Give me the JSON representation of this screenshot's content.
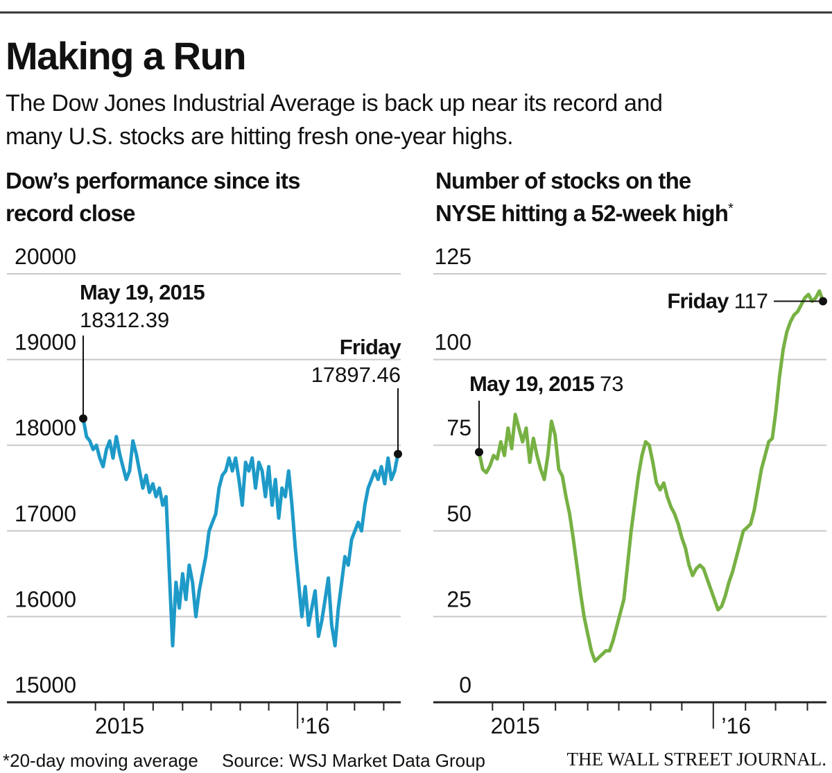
{
  "header": {
    "title": "Making a Run",
    "subtitle": [
      "The Dow Jones Industrial Average is back up near its record and",
      "many U.S. stocks are hitting fresh one-year highs."
    ]
  },
  "chart_data": [
    {
      "type": "line",
      "title": [
        "Dow’s performance since its",
        "record close"
      ],
      "color": "#1e9ac8",
      "ylim": [
        15000,
        20000
      ],
      "yticks": [
        15000,
        16000,
        17000,
        18000,
        19000,
        20000
      ],
      "grid": true,
      "xlim": [
        0,
        95
      ],
      "xticks": [
        3.7,
        12.3,
        21.1,
        30,
        38.6,
        47.4,
        56,
        64.7,
        73.6,
        81.9,
        90.7
      ],
      "xlabels": [
        {
          "value": 11,
          "label": "2015"
        },
        {
          "value": 70,
          "label": "’16"
        }
      ],
      "values": [
        18312.39,
        18100,
        18050,
        17950,
        18000,
        17850,
        17750,
        17950,
        18050,
        17850,
        18100,
        17900,
        17750,
        17600,
        17700,
        18050,
        17900,
        17700,
        17500,
        17650,
        17450,
        17550,
        17400,
        17500,
        17300,
        17400,
        16500,
        15660,
        16400,
        16100,
        16500,
        16200,
        16600,
        16400,
        16000,
        16300,
        16500,
        16700,
        17000,
        17100,
        17200,
        17500,
        17650,
        17700,
        17850,
        17700,
        17850,
        17600,
        17300,
        17800,
        17700,
        17850,
        17500,
        17800,
        17700,
        17400,
        17750,
        17300,
        17600,
        17150,
        17500,
        17400,
        17700,
        17300,
        16800,
        16400,
        16000,
        16350,
        15900,
        16100,
        16300,
        15770,
        15950,
        16200,
        16450,
        15900,
        15660,
        16100,
        16400,
        16700,
        16600,
        16900,
        17000,
        17100,
        17000,
        17300,
        17500,
        17600,
        17700,
        17600,
        17750,
        17550,
        17850,
        17600,
        17700,
        17897.46
      ],
      "annotations": [
        {
          "label": "May 19, 2015"
        },
        {
          "label": "Friday"
        }
      ]
    },
    {
      "type": "line",
      "title": [
        "Number of stocks on the",
        "NYSE hitting a 52-week high"
      ],
      "title_mark": "*",
      "color": "#77b144",
      "ylim": [
        0,
        125
      ],
      "yticks": [
        0,
        25,
        50,
        75,
        100,
        125
      ],
      "grid": true,
      "xlim": [
        0,
        95
      ],
      "xticks": [
        3.7,
        12.3,
        21.1,
        30,
        38.6,
        47.4,
        56,
        64.7,
        73.6,
        81.9,
        90.7
      ],
      "xlabels": [
        {
          "value": 10,
          "label": "2015"
        },
        {
          "value": 71,
          "label": "’16"
        }
      ],
      "values": [
        73,
        68,
        67,
        69,
        72,
        71,
        76,
        72,
        80,
        74,
        84,
        80,
        76,
        80,
        70,
        77,
        72,
        68,
        65,
        72,
        82,
        78,
        68,
        66,
        60,
        55,
        48,
        40,
        32,
        25,
        20,
        15,
        12,
        13,
        14,
        15,
        15,
        18,
        22,
        26,
        30,
        40,
        50,
        58,
        66,
        72,
        76,
        75,
        70,
        64,
        62,
        64,
        60,
        57,
        55,
        52,
        48,
        45,
        40,
        37,
        39,
        40,
        39,
        36,
        33,
        30,
        27,
        28,
        31,
        35,
        38,
        42,
        46,
        50,
        51,
        52,
        56,
        62,
        68,
        72,
        76,
        77,
        85,
        95,
        103,
        108,
        111,
        113,
        114,
        116,
        118,
        119,
        117,
        118,
        120,
        117
      ],
      "annotations": [
        {
          "label": "May 19, 2015"
        },
        {
          "label": "Friday"
        }
      ]
    }
  ],
  "footer": {
    "note": "*20-day moving average",
    "source": "Source: WSJ Market Data Group",
    "credit": "THE WALL STREET JOURNAL."
  }
}
